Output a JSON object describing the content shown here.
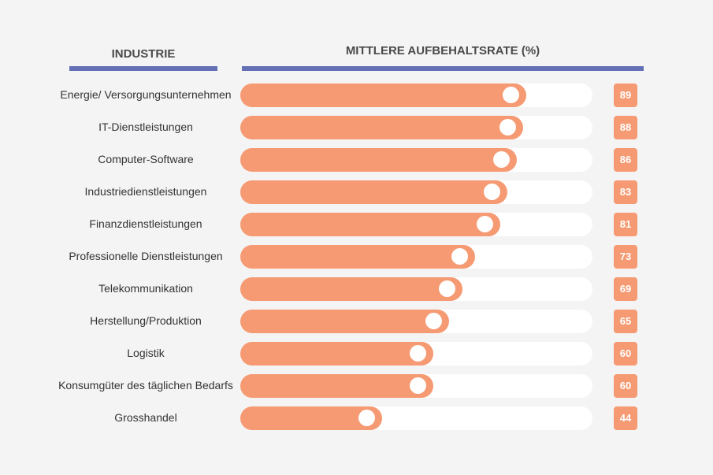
{
  "chart_data": {
    "type": "bar",
    "orientation": "horizontal",
    "column_headers": {
      "category": "INDUSTRIE",
      "value": "MITTLERE AUFBEHALTSRATE (%)"
    },
    "categories": [
      "Energie/ Versorgungsunternehmen",
      "IT-Dienstleistungen",
      "Computer-Software",
      "Industriedienstleistungen",
      "Finanzdienstleistungen",
      "Professionelle Dienstleistungen",
      "Telekommunikation",
      "Herstellung/Produktion",
      "Logistik",
      "Konsumgüter des täglichen Bedarfs",
      "Grosshandel"
    ],
    "values": [
      89,
      88,
      86,
      83,
      81,
      73,
      69,
      65,
      60,
      60,
      44
    ],
    "xlim": [
      0,
      100
    ],
    "grid": false,
    "legend": "none"
  },
  "colors": {
    "bar": "#f59a72",
    "track": "#ffffff",
    "header_line": "#6470b5",
    "background": "#f4f4f4"
  }
}
